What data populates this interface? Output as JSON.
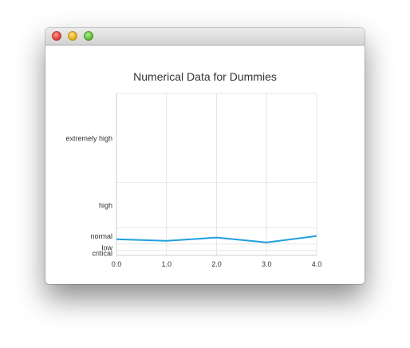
{
  "window": {
    "controls": {
      "close": "close-icon",
      "minimize": "minimize-icon",
      "maximize": "maximize-icon"
    }
  },
  "chart_data": {
    "type": "line",
    "title": "Numerical Data for Dummies",
    "xlabel": "",
    "ylabel": "",
    "x_ticks": [
      "0.0",
      "1.0",
      "2.0",
      "3.0",
      "4.0"
    ],
    "xlim": [
      0,
      4
    ],
    "ylim": [
      0,
      10
    ],
    "y_categories": [
      {
        "label": "critical",
        "upper": 0.3
      },
      {
        "label": "low",
        "upper": 0.7
      },
      {
        "label": "normal",
        "upper": 1.7
      },
      {
        "label": "high",
        "upper": 4.5
      },
      {
        "label": "extremely high",
        "upper": 10
      }
    ],
    "grid": true,
    "series": [
      {
        "color": "#209fdf",
        "x": [
          0,
          1,
          2,
          3,
          4
        ],
        "y": [
          1,
          0.9,
          1.1,
          0.8,
          1.2
        ]
      }
    ]
  }
}
